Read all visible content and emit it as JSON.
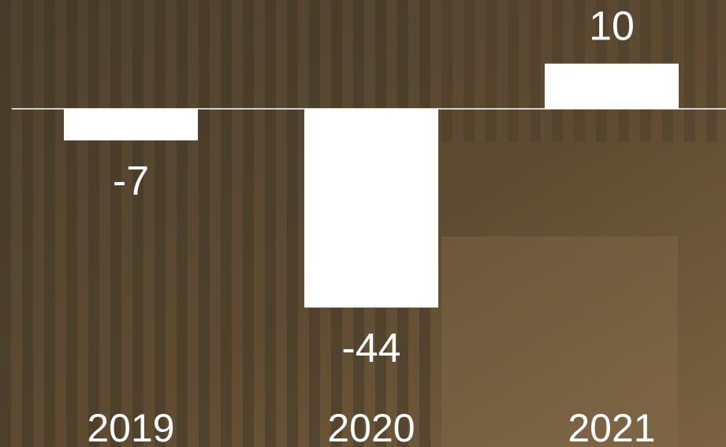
{
  "chart_data": {
    "type": "bar",
    "categories": [
      "2019",
      "2020",
      "2021"
    ],
    "values": [
      -7,
      -44,
      10
    ],
    "color": "#ffffff"
  }
}
